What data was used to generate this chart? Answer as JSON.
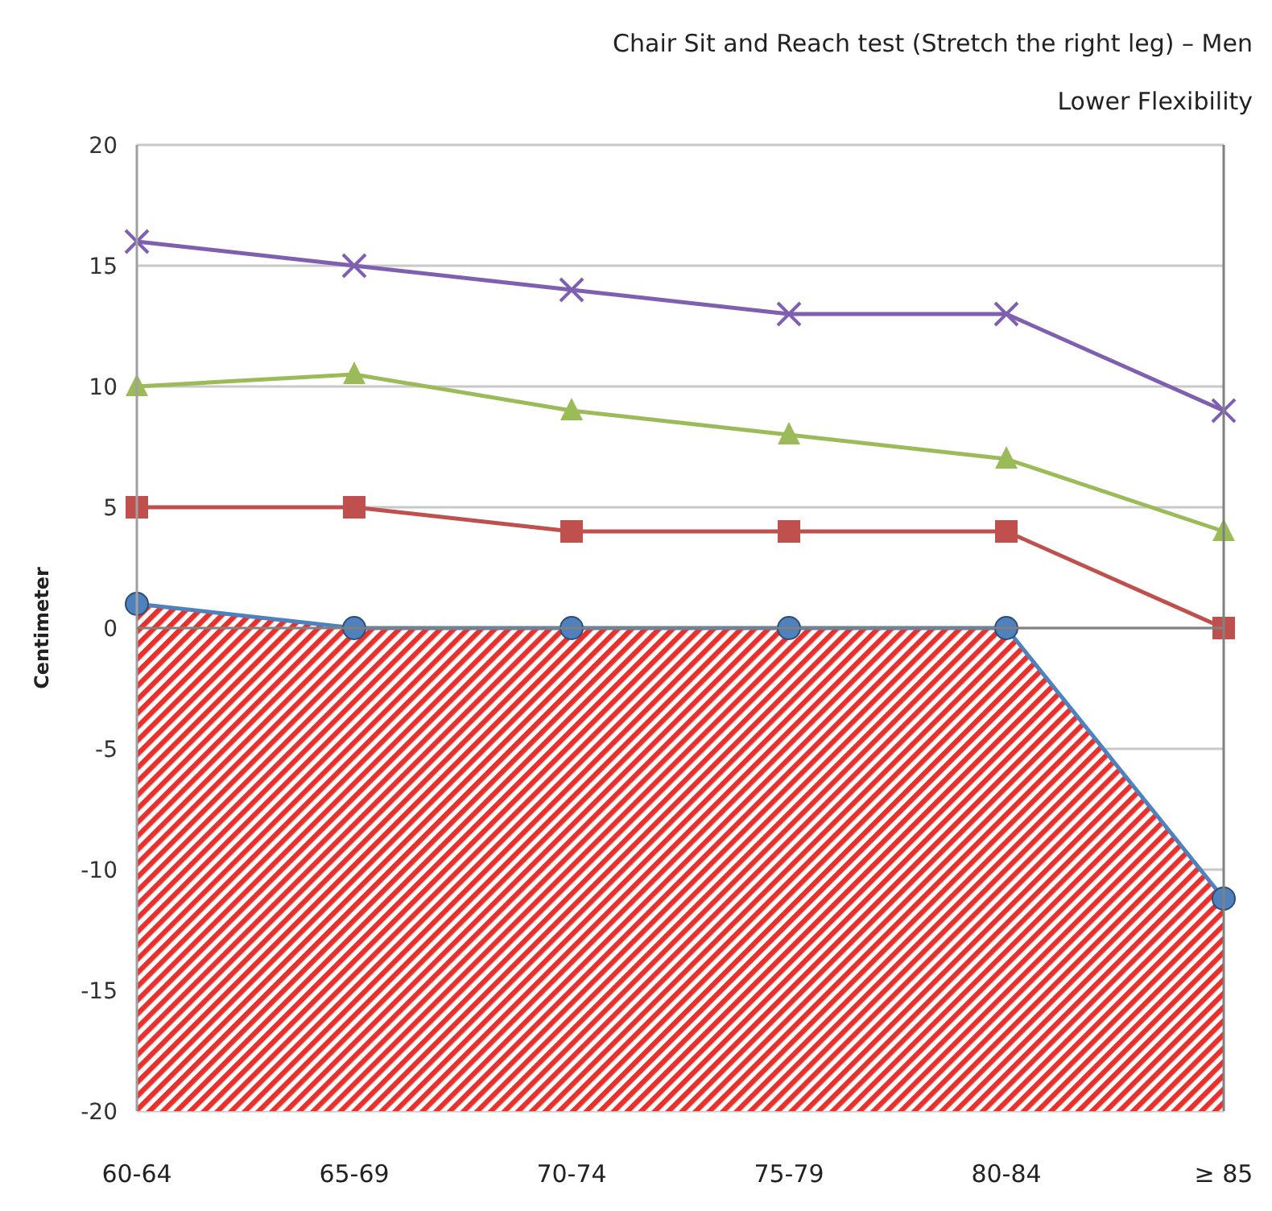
{
  "chart_data": {
    "type": "line",
    "title": "Chair Sit and Reach test (Stretch the right leg) – Men",
    "subtitle": "Lower Flexibility",
    "ylabel": "Centimeter",
    "categories": [
      "60-64",
      "65-69",
      "70-74",
      "75-79",
      "80-84",
      "≥ 85"
    ],
    "series": [
      {
        "color": "#4f81bd",
        "marker": "circle",
        "values": [
          1,
          0,
          0,
          0,
          0,
          -11.2
        ],
        "lower": [
          -20,
          -20,
          -20,
          -20,
          -20,
          -20
        ],
        "upper": [
          1,
          0,
          0,
          0,
          0,
          -11.2
        ]
      },
      {
        "color": "#c0504d",
        "marker": "square",
        "values": [
          5,
          5,
          4,
          4,
          4,
          0
        ]
      },
      {
        "color": "#9bbb59",
        "marker": "triangle",
        "values": [
          10,
          10.5,
          9,
          8,
          7,
          4
        ]
      },
      {
        "color": "#7f5fb0",
        "marker": "cross",
        "values": [
          16,
          15,
          14,
          13,
          13,
          9
        ]
      }
    ],
    "ylim": [
      -20,
      20
    ],
    "yticks": [
      -20,
      -15,
      -10,
      -5,
      0,
      5,
      10,
      15,
      20
    ],
    "grid": "y",
    "legend": false
  }
}
